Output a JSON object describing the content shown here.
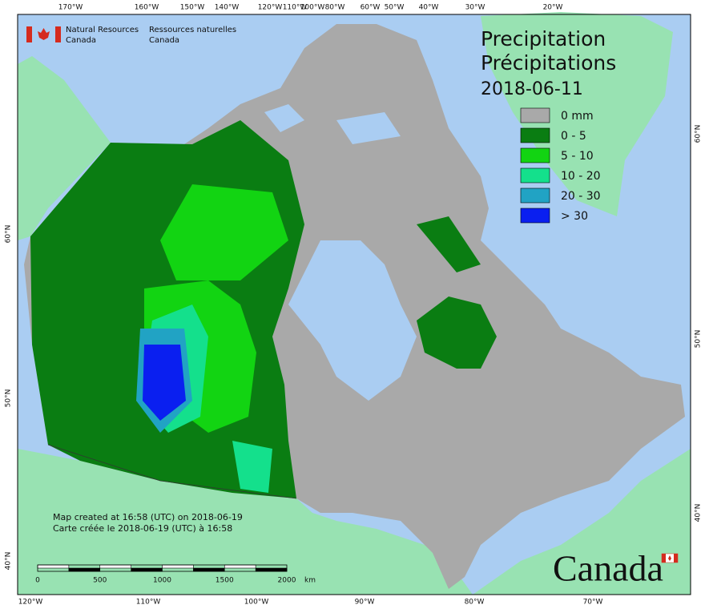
{
  "header": {
    "en_line1": "Natural Resources",
    "en_line2": "Canada",
    "fr_line1": "Ressources naturelles",
    "fr_line2": "Canada"
  },
  "title": {
    "en": "Precipitation",
    "fr": "Précipitations",
    "date": "2018-06-11"
  },
  "legend": [
    {
      "label": "0 mm",
      "color": "#a9a9a9"
    },
    {
      "label": "0 - 5",
      "color": "#0a7d12"
    },
    {
      "label": "5 - 10",
      "color": "#12d412"
    },
    {
      "label": "10 - 20",
      "color": "#14e08c"
    },
    {
      "label": "20 - 30",
      "color": "#21a3c4"
    },
    {
      "label": "> 30",
      "color": "#0a1ff0"
    }
  ],
  "graticule": {
    "top": [
      "170°W",
      "160°W",
      "150°W",
      "140°W",
      "120°W",
      "110°W",
      "100°W",
      "80°W",
      "60°W",
      "50°W",
      "40°W",
      "30°W",
      "20°W"
    ],
    "bottom": [
      "120°W",
      "110°W",
      "100°W",
      "90°W",
      "80°W",
      "70°W"
    ],
    "left": [
      "60°N",
      "50°N",
      "40°N"
    ],
    "right": [
      "60°N",
      "50°N",
      "40°N"
    ]
  },
  "footer": {
    "created_en": "Map created at 16:58 (UTC) on 2018-06-19",
    "created_fr": "Carte créée le 2018-06-19 (UTC) à 16:58"
  },
  "scale_bar": {
    "labels": [
      "0",
      "500",
      "1000",
      "1500",
      "2000"
    ],
    "unit": "km"
  },
  "wordmark": "Canada"
}
